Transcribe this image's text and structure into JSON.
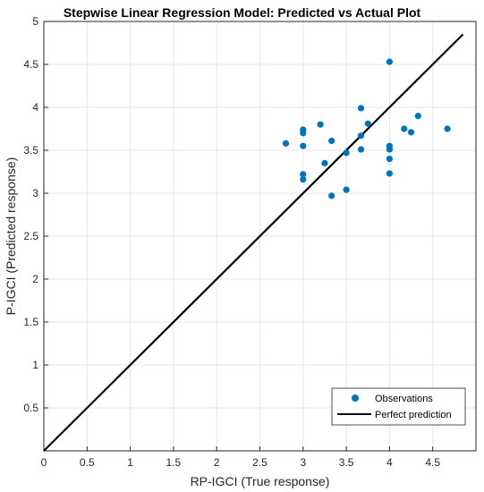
{
  "chart_data": {
    "type": "scatter",
    "title": "Stepwise Linear Regression Model: Predicted vs Actual Plot",
    "xlabel": "RP-IGCI (True response)",
    "ylabel": "P-IGCI (Predicted response)",
    "xlim": [
      0,
      5
    ],
    "ylim": [
      0,
      5
    ],
    "xticks": [
      "0",
      "0.5",
      "1",
      "1.5",
      "2",
      "2.5",
      "3",
      "3.5",
      "4",
      "4.5"
    ],
    "yticks": [
      "0.5",
      "1",
      "1.5",
      "2",
      "2.5",
      "3",
      "3.5",
      "4",
      "4.5",
      "5"
    ],
    "grid": true,
    "legend_position": "bottom-right",
    "series": [
      {
        "name": "Observations",
        "color": "#0072BD",
        "marker": "circle",
        "points": [
          {
            "x": 2.8,
            "y": 3.58
          },
          {
            "x": 3.0,
            "y": 3.74
          },
          {
            "x": 3.0,
            "y": 3.7
          },
          {
            "x": 3.0,
            "y": 3.55
          },
          {
            "x": 3.0,
            "y": 3.22
          },
          {
            "x": 3.0,
            "y": 3.16
          },
          {
            "x": 3.2,
            "y": 3.8
          },
          {
            "x": 3.25,
            "y": 3.35
          },
          {
            "x": 3.33,
            "y": 3.61
          },
          {
            "x": 3.33,
            "y": 2.97
          },
          {
            "x": 3.5,
            "y": 3.47
          },
          {
            "x": 3.5,
            "y": 3.04
          },
          {
            "x": 3.67,
            "y": 3.99
          },
          {
            "x": 3.67,
            "y": 3.67
          },
          {
            "x": 3.67,
            "y": 3.51
          },
          {
            "x": 3.75,
            "y": 3.81
          },
          {
            "x": 4.0,
            "y": 4.53
          },
          {
            "x": 4.0,
            "y": 3.55
          },
          {
            "x": 4.0,
            "y": 3.51
          },
          {
            "x": 4.0,
            "y": 3.4
          },
          {
            "x": 4.0,
            "y": 3.23
          },
          {
            "x": 4.17,
            "y": 3.75
          },
          {
            "x": 4.25,
            "y": 3.71
          },
          {
            "x": 4.33,
            "y": 3.9
          },
          {
            "x": 4.67,
            "y": 3.75
          }
        ]
      },
      {
        "name": "Perfect prediction",
        "color": "#000000",
        "type": "line",
        "points": [
          {
            "x": 0,
            "y": 0
          },
          {
            "x": 4.85,
            "y": 4.85
          }
        ]
      }
    ]
  }
}
